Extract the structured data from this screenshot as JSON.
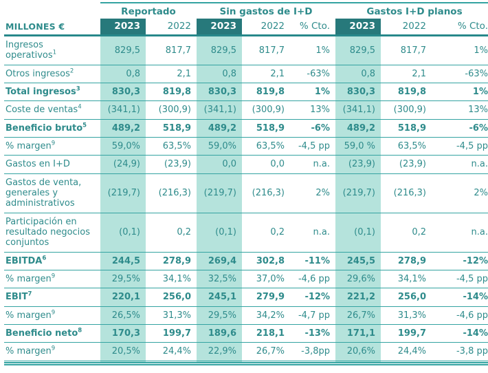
{
  "colors": {
    "teal_text": "#2E8B8B",
    "teal_dark": "#27797B",
    "teal_strong": "#27888A",
    "mint": "#B5E3DC",
    "rule": "#33A3A1"
  },
  "table": {
    "unit_label": "MILLONES €",
    "groups": [
      {
        "label": "Reportado",
        "span": 2
      },
      {
        "label": "Sin gastos de I+D",
        "span": 3
      },
      {
        "label": "Gastos I+D planos",
        "span": 3
      }
    ],
    "columns": [
      {
        "key": "reportado-2023",
        "header": "2023",
        "dark": true,
        "band": true
      },
      {
        "key": "reportado-2022",
        "header": "2022",
        "dark": false,
        "band": false
      },
      {
        "key": "sin-gastos-2023",
        "header": "2023",
        "dark": true,
        "band": true
      },
      {
        "key": "sin-gastos-2022",
        "header": "2022",
        "dark": false,
        "band": false
      },
      {
        "key": "sin-gastos-cto",
        "header": "% Cto.",
        "dark": false,
        "band": false
      },
      {
        "key": "planos-2023",
        "header": "2023",
        "dark": true,
        "band": true
      },
      {
        "key": "planos-2022",
        "header": "2022",
        "dark": false,
        "band": false
      },
      {
        "key": "planos-cto",
        "header": "% Cto.",
        "dark": false,
        "band": false
      }
    ],
    "rows": [
      {
        "label": "Ingresos operativos",
        "sup": "1",
        "bold": false,
        "values": [
          "829,5",
          "817,7",
          "829,5",
          "817,7",
          "1%",
          "829,5",
          "817,7",
          "1%"
        ]
      },
      {
        "label": "Otros ingresos",
        "sup": "2",
        "bold": false,
        "values": [
          "0,8",
          "2,1",
          "0,8",
          "2,1",
          "-63%",
          "0,8",
          "2,1",
          "-63%"
        ]
      },
      {
        "label": "Total ingresos",
        "sup": "3",
        "bold": true,
        "values": [
          "830,3",
          "819,8",
          "830,3",
          "819,8",
          "1%",
          "830,3",
          "819,8",
          "1%"
        ]
      },
      {
        "label": "Coste de ventas",
        "sup": "4",
        "bold": false,
        "values": [
          "(341,1)",
          "(300,9)",
          "(341,1)",
          "(300,9)",
          "13%",
          "(341,1)",
          "(300,9)",
          "13%"
        ]
      },
      {
        "label": "Beneficio bruto",
        "sup": "5",
        "bold": true,
        "values": [
          "489,2",
          "518,9",
          "489,2",
          "518,9",
          "-6%",
          "489,2",
          "518,9",
          "-6%"
        ]
      },
      {
        "label": "% margen",
        "sup": "9",
        "bold": false,
        "values": [
          "59,0%",
          "63,5%",
          "59,0%",
          "63,5%",
          "-4,5 pp",
          "59,0 %",
          "63,5%",
          "-4,5 pp"
        ]
      },
      {
        "label": "Gastos en I+D",
        "sup": null,
        "bold": false,
        "values": [
          "(24,9)",
          "(23,9)",
          "0,0",
          "0,0",
          "n.a.",
          "(23,9)",
          "(23,9)",
          "n.a."
        ]
      },
      {
        "label": "Gastos de venta, generales y administrativos",
        "sup": null,
        "bold": false,
        "values": [
          "(219,7)",
          "(216,3)",
          "(219,7)",
          "(216,3)",
          "2%",
          "(219,7)",
          "(216,3)",
          "2%"
        ]
      },
      {
        "label": "Participación en resultado negocios conjuntos",
        "sup": null,
        "bold": false,
        "values": [
          "(0,1)",
          "0,2",
          "(0,1)",
          "0,2",
          "n.a.",
          "(0,1)",
          "0,2",
          "n.a."
        ]
      },
      {
        "label": "EBITDA",
        "sup": "6",
        "bold": true,
        "values": [
          "244,5",
          "278,9",
          "269,4",
          "302,8",
          "-11%",
          "245,5",
          "278,9",
          "-12%"
        ]
      },
      {
        "label": "% margen",
        "sup": "9",
        "bold": false,
        "values": [
          "29,5%",
          "34,1%",
          "32,5%",
          "37,0%",
          "-4,6 pp",
          "29,6%",
          "34,1%",
          "-4,5 pp"
        ]
      },
      {
        "label": "EBIT",
        "sup": "7",
        "bold": true,
        "values": [
          "220,1",
          "256,0",
          "245,1",
          "279,9",
          "-12%",
          "221,2",
          "256,0",
          "-14%"
        ]
      },
      {
        "label": "% margen",
        "sup": "9",
        "bold": false,
        "values": [
          "26,5%",
          "31,3%",
          "29,5%",
          "34,2%",
          "-4,7 pp",
          "26,7%",
          "31,3%",
          "-4,6 pp"
        ]
      },
      {
        "label": "Beneficio neto",
        "sup": "8",
        "bold": true,
        "values": [
          "170,3",
          "199,7",
          "189,6",
          "218,1",
          "-13%",
          "171,1",
          "199,7",
          "-14%"
        ]
      },
      {
        "label": "% margen",
        "sup": "9",
        "bold": false,
        "values": [
          "20,5%",
          "24,4%",
          "22,9%",
          "26,7%",
          "-3,8pp",
          "20,6%",
          "24,4%",
          "-3,8 pp"
        ]
      }
    ]
  }
}
